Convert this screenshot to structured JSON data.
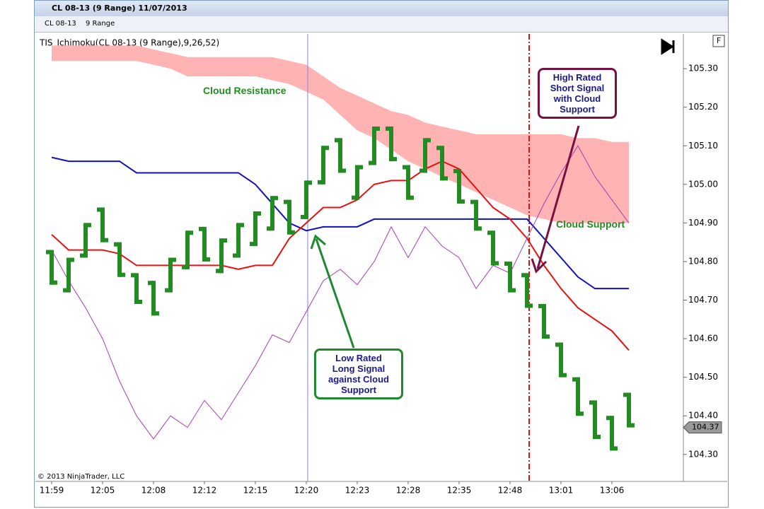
{
  "window": {
    "title": "CL 08-13 (9 Range)  11/07/2013",
    "toolbar": {
      "instrument": "CL 08-13",
      "period": "9 Range",
      "button": "F"
    }
  },
  "chart_data": {
    "type": "ohlc",
    "title": "TIS_Ichimoku(CL 08-13 (9 Range),9,26,52)",
    "categories": [
      "11:59",
      null,
      null,
      "12:05",
      null,
      null,
      "12:08",
      null,
      null,
      "12:12",
      null,
      null,
      "12:15",
      null,
      null,
      "12:20",
      null,
      null,
      "12:23",
      null,
      null,
      "12:28",
      null,
      null,
      "12:35",
      null,
      null,
      "12:48",
      null,
      null,
      "13:01",
      null,
      null,
      "13:06",
      null
    ],
    "bars": {
      "color": "#228b22",
      "open": [
        104.83,
        104.72,
        104.81,
        104.94,
        104.85,
        104.77,
        104.75,
        104.72,
        104.78,
        104.89,
        104.77,
        104.81,
        104.84,
        104.88,
        104.96,
        104.91,
        105.0,
        105.12,
        104.96,
        105.05,
        105.15,
        105.05,
        105.03,
        105.1,
        105.04,
        104.96,
        104.88,
        104.8,
        104.77,
        104.69,
        104.59,
        104.5,
        104.44,
        104.4,
        104.46
      ],
      "close": [
        104.74,
        104.81,
        104.9,
        104.85,
        104.76,
        104.69,
        104.66,
        104.81,
        104.88,
        104.8,
        104.86,
        104.9,
        104.93,
        104.97,
        104.87,
        105.01,
        105.1,
        105.03,
        105.05,
        105.15,
        105.06,
        104.96,
        105.12,
        105.01,
        104.95,
        104.88,
        104.79,
        104.72,
        104.68,
        104.6,
        104.5,
        104.4,
        104.34,
        104.31,
        104.37
      ]
    },
    "cloud": {
      "color": "#ffb3b3",
      "upper": [
        105.36,
        105.36,
        105.36,
        105.36,
        105.36,
        105.36,
        105.35,
        105.34,
        105.33,
        105.33,
        105.33,
        105.33,
        105.33,
        105.33,
        105.32,
        105.31,
        105.28,
        105.25,
        105.23,
        105.21,
        105.19,
        105.18,
        105.16,
        105.15,
        105.14,
        105.13,
        105.13,
        105.13,
        105.13,
        105.13,
        105.13,
        105.12,
        105.12,
        105.11,
        105.11
      ],
      "lower": [
        105.32,
        105.32,
        105.32,
        105.32,
        105.32,
        105.32,
        105.31,
        105.3,
        105.28,
        105.28,
        105.28,
        105.28,
        105.28,
        105.27,
        105.26,
        105.24,
        105.22,
        105.18,
        105.14,
        105.12,
        105.09,
        105.06,
        105.04,
        105.02,
        105.0,
        104.98,
        104.96,
        104.94,
        104.92,
        104.91,
        104.9,
        104.9,
        104.9,
        104.9,
        104.9
      ]
    },
    "lines": [
      {
        "color": "#1010c0",
        "values": [
          105.07,
          105.06,
          105.06,
          105.06,
          105.06,
          105.03,
          105.03,
          105.03,
          105.03,
          105.03,
          105.03,
          105.03,
          105.0,
          104.95,
          104.9,
          104.88,
          104.89,
          104.89,
          104.89,
          104.91,
          104.91,
          104.91,
          104.91,
          104.91,
          104.91,
          104.91,
          104.91,
          104.91,
          104.91,
          104.86,
          104.81,
          104.76,
          104.73,
          104.73,
          104.73
        ]
      },
      {
        "color": "#e81010",
        "values": [
          104.87,
          104.83,
          104.83,
          104.83,
          104.82,
          104.79,
          104.79,
          104.79,
          104.79,
          104.79,
          104.79,
          104.78,
          104.79,
          104.79,
          104.86,
          104.9,
          104.94,
          104.94,
          104.96,
          105.0,
          105.01,
          105.01,
          105.04,
          105.06,
          105.04,
          104.99,
          104.94,
          104.91,
          104.86,
          104.79,
          104.73,
          104.68,
          104.65,
          104.62,
          104.57
        ]
      },
      {
        "color": "#a040b0",
        "values": [
          104.83,
          104.75,
          104.68,
          104.6,
          104.49,
          104.4,
          104.34,
          104.4,
          104.37,
          104.44,
          104.39,
          104.46,
          104.53,
          104.61,
          104.59,
          104.67,
          104.75,
          104.78,
          104.74,
          104.8,
          104.89,
          104.81,
          104.89,
          104.84,
          104.81,
          104.73,
          104.79,
          104.77,
          104.86,
          104.95,
          105.03,
          105.1,
          105.02,
          104.96,
          104.9
        ]
      }
    ],
    "ylim": [
      104.23,
      105.39
    ],
    "yticks": [
      {
        "value": 104.3,
        "label": "104.30"
      },
      {
        "value": 104.4,
        "label": "104.40"
      },
      {
        "value": 104.5,
        "label": "104.50"
      },
      {
        "value": 104.6,
        "label": "104.60"
      },
      {
        "value": 104.7,
        "label": "104.70"
      },
      {
        "value": 104.8,
        "label": "104.80"
      },
      {
        "value": 104.9,
        "label": "104.90"
      },
      {
        "value": 105.0,
        "label": "105.00"
      },
      {
        "value": 105.1,
        "label": "105.10"
      },
      {
        "value": 105.2,
        "label": "105.20"
      },
      {
        "value": 105.3,
        "label": "105.30"
      }
    ],
    "grid": false,
    "annotations": [
      "Cloud Resistance",
      "Cloud Support",
      "High Rated\nShort Signal\nwith Cloud\nSupport",
      "Low Rated\nLong Signal\nagainst Cloud\nSupport"
    ],
    "copyright": "© 2013 NinjaTrader, LLC"
  }
}
